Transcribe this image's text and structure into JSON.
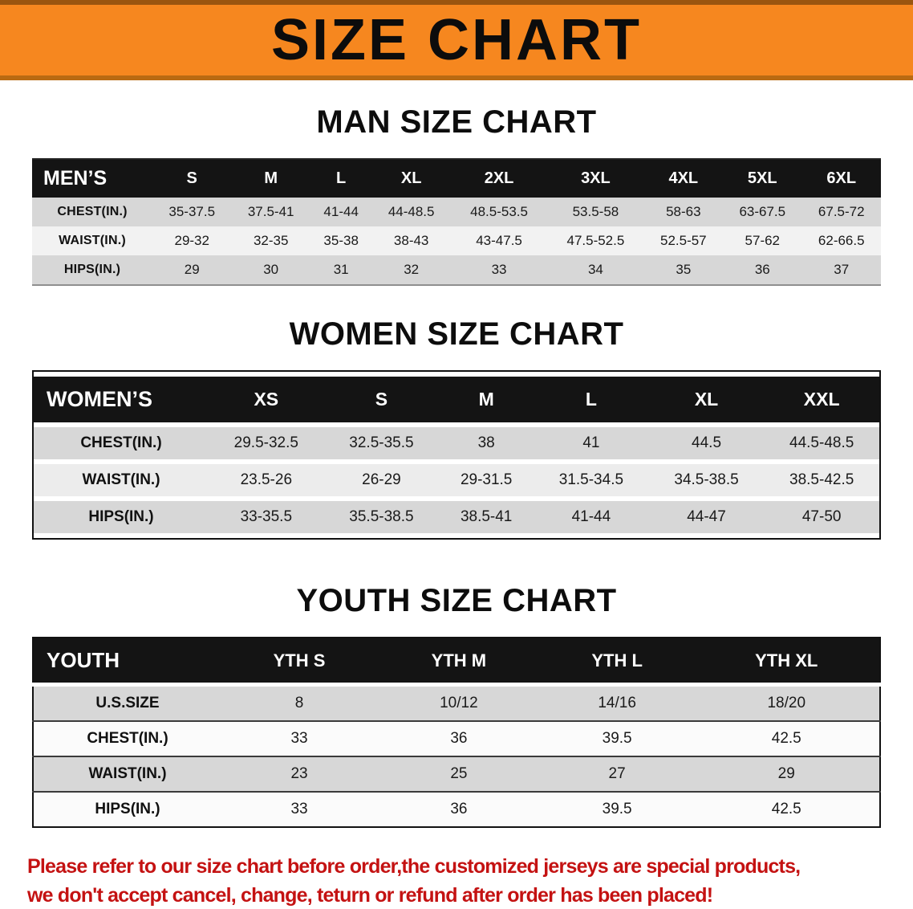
{
  "banner": {
    "title": "SIZE CHART"
  },
  "colors": {
    "banner_orange": "#f6871f",
    "header_black": "#141414",
    "row_gray": "#d7d7d7",
    "disclaimer_red": "#c41212"
  },
  "men": {
    "heading": "MAN SIZE CHART",
    "table": {
      "header": [
        "MEN’S",
        "S",
        "M",
        "L",
        "XL",
        "2XL",
        "3XL",
        "4XL",
        "5XL",
        "6XL"
      ],
      "rows": [
        [
          "CHEST(IN.)",
          "35-37.5",
          "37.5-41",
          "41-44",
          "44-48.5",
          "48.5-53.5",
          "53.5-58",
          "58-63",
          "63-67.5",
          "67.5-72"
        ],
        [
          "WAIST(IN.)",
          "29-32",
          "32-35",
          "35-38",
          "38-43",
          "43-47.5",
          "47.5-52.5",
          "52.5-57",
          "57-62",
          "62-66.5"
        ],
        [
          "HIPS(IN.)",
          "29",
          "30",
          "31",
          "32",
          "33",
          "34",
          "35",
          "36",
          "37"
        ]
      ]
    }
  },
  "women": {
    "heading": "WOMEN SIZE CHART",
    "table": {
      "header": [
        "WOMEN’S",
        "XS",
        "S",
        "M",
        "L",
        "XL",
        "XXL"
      ],
      "rows": [
        [
          "CHEST(IN.)",
          "29.5-32.5",
          "32.5-35.5",
          "38",
          "41",
          "44.5",
          "44.5-48.5"
        ],
        [
          "WAIST(IN.)",
          "23.5-26",
          "26-29",
          "29-31.5",
          "31.5-34.5",
          "34.5-38.5",
          "38.5-42.5"
        ],
        [
          "HIPS(IN.)",
          "33-35.5",
          "35.5-38.5",
          "38.5-41",
          "41-44",
          "44-47",
          "47-50"
        ]
      ]
    }
  },
  "youth": {
    "heading": "YOUTH SIZE CHART",
    "table": {
      "header": [
        "YOUTH",
        "YTH S",
        "YTH M",
        "YTH L",
        "YTH XL"
      ],
      "rows": [
        [
          "U.S.SIZE",
          "8",
          "10/12",
          "14/16",
          "18/20"
        ],
        [
          "CHEST(IN.)",
          "33",
          "36",
          "39.5",
          "42.5"
        ],
        [
          "WAIST(IN.)",
          "23",
          "25",
          "27",
          "29"
        ],
        [
          "HIPS(IN.)",
          "33",
          "36",
          "39.5",
          "42.5"
        ]
      ]
    }
  },
  "disclaimer": {
    "line1": "Please refer to our size chart before order,the customized jerseys are special products,",
    "line2": "we don't accept cancel, change, teturn or refund after order has been placed!"
  }
}
